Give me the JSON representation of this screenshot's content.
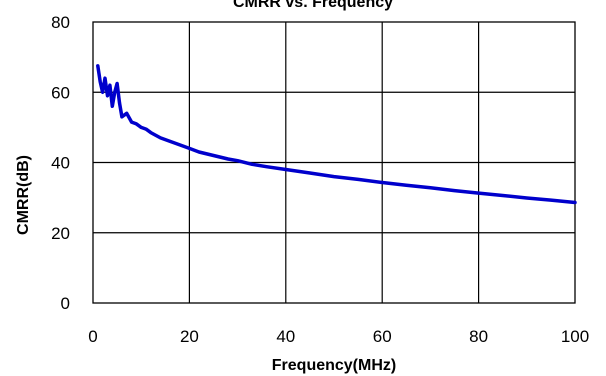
{
  "chart_data": {
    "type": "line",
    "title": "CMRR vs. Frequency",
    "xlabel": "Frequency(MHz)",
    "ylabel": "CMRR(dB)",
    "xlim": [
      0,
      100
    ],
    "ylim": [
      0,
      80
    ],
    "x_ticks": [
      "0",
      "20",
      "40",
      "60",
      "80",
      "100"
    ],
    "y_ticks": [
      "0",
      "20",
      "40",
      "60",
      "80"
    ],
    "grid": true,
    "legend": "none",
    "series": [
      {
        "color": "#0000cc",
        "x": [
          1,
          1.5,
          2,
          2.5,
          3,
          3.5,
          4,
          4.5,
          5,
          5.5,
          6,
          7,
          8,
          9,
          10,
          11,
          12,
          14,
          16,
          18,
          20,
          22,
          25,
          28,
          30,
          33,
          36,
          40,
          45,
          50,
          55,
          60,
          65,
          70,
          75,
          80,
          85,
          90,
          95,
          100
        ],
        "y": [
          67.5,
          63,
          60,
          64,
          59,
          62,
          56,
          60,
          62.5,
          57,
          53,
          54,
          51.5,
          51,
          50,
          49.5,
          48.5,
          47,
          46,
          45,
          44,
          43,
          42,
          41,
          40.5,
          39.5,
          38.8,
          38,
          37,
          36,
          35.2,
          34.3,
          33.5,
          32.8,
          32,
          31.3,
          30.6,
          29.9,
          29.3,
          28.6
        ]
      }
    ]
  }
}
